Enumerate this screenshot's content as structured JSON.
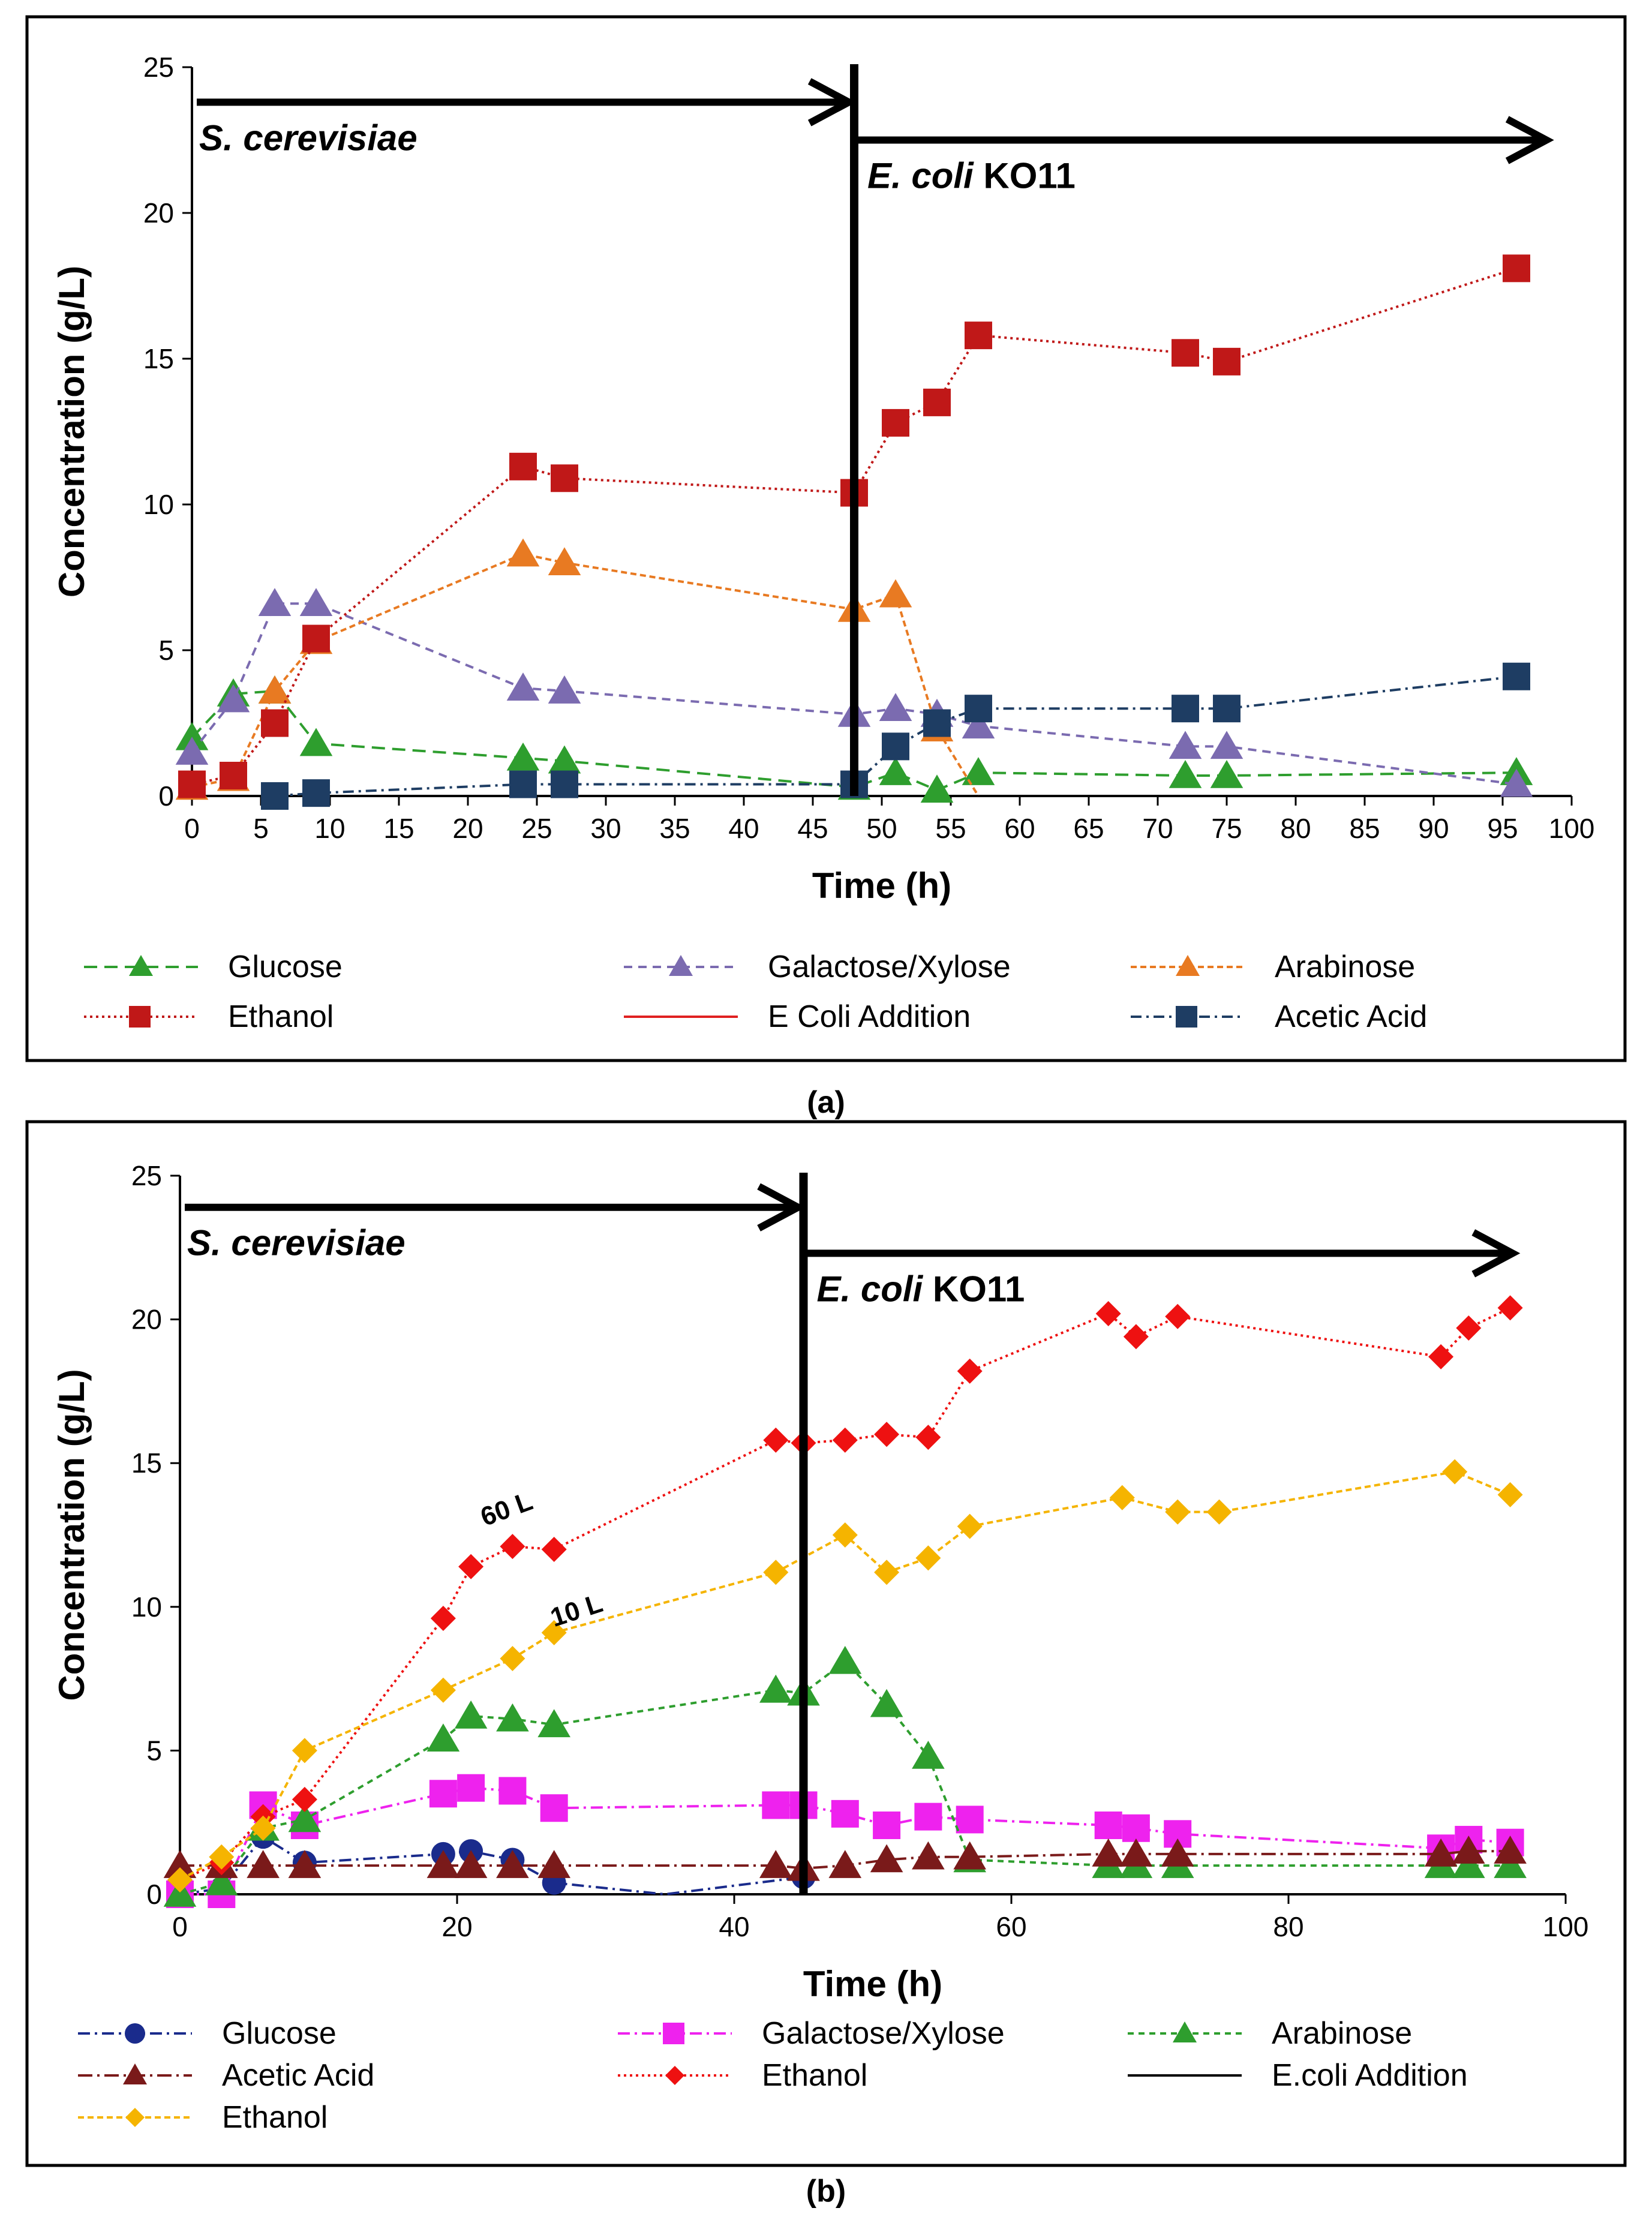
{
  "chart_data": [
    {
      "type": "line",
      "panel": "(a)",
      "xlabel": "Time (h)",
      "ylabel": "Concentration  (g/L)",
      "xlim": [
        0,
        100
      ],
      "ylim": [
        0,
        25
      ],
      "xticks": [
        0,
        5,
        10,
        15,
        20,
        25,
        30,
        35,
        40,
        45,
        50,
        55,
        60,
        65,
        70,
        75,
        80,
        85,
        90,
        95,
        100
      ],
      "yticks": [
        0,
        5,
        10,
        15,
        20,
        25
      ],
      "addition_time": 48,
      "phase_labels": {
        "first": {
          "text": "S. cerevisiae",
          "x_start": 0,
          "x_end": 47,
          "y": 23.8
        },
        "second": {
          "text_italic": "E. coli",
          "text_plain": " KO11",
          "x_start": 48,
          "x_end": 98,
          "y": 22.5
        }
      },
      "series": [
        {
          "name": "Glucose",
          "color": "#2e9e2e",
          "marker": "triangle",
          "dash": "22,12",
          "x": [
            0,
            3,
            6,
            9,
            24,
            27,
            48,
            51,
            54,
            57,
            72,
            75,
            96
          ],
          "y": [
            2.0,
            3.5,
            3.6,
            1.8,
            1.3,
            1.2,
            0.3,
            0.8,
            0.2,
            0.8,
            0.7,
            0.7,
            0.8
          ]
        },
        {
          "name": "Galactose/Xylose",
          "color": "#7b6bb0",
          "marker": "triangle",
          "dash": "14,10",
          "x": [
            0,
            3,
            6,
            9,
            24,
            27,
            48,
            51,
            54,
            57,
            72,
            75,
            96
          ],
          "y": [
            1.5,
            3.3,
            6.6,
            6.6,
            3.7,
            3.6,
            2.8,
            3.0,
            2.8,
            2.4,
            1.7,
            1.7,
            0.4
          ]
        },
        {
          "name": "Arabinose",
          "color": "#e87a22",
          "marker": "triangle",
          "dash": "10,6",
          "x": [
            0,
            3,
            6,
            9,
            24,
            27,
            48,
            51,
            54,
            57
          ],
          "y": [
            0.3,
            0.6,
            3.6,
            5.3,
            8.3,
            8.0,
            6.4,
            6.9,
            2.3,
            0
          ]
        },
        {
          "name": "Ethanol",
          "color": "#c01818",
          "marker": "square",
          "dash": "4,6",
          "x": [
            0,
            3,
            6,
            9,
            24,
            27,
            48,
            51,
            54,
            57,
            72,
            75,
            96
          ],
          "y": [
            0.4,
            0.7,
            2.5,
            5.4,
            11.3,
            10.9,
            10.4,
            12.8,
            13.5,
            15.8,
            15.2,
            14.9,
            18.1
          ]
        },
        {
          "name": "E Coli Addition",
          "color": "#e02020",
          "marker": "none",
          "dash": "",
          "legend_only": true,
          "x": [],
          "y": []
        },
        {
          "name": "Acetic Acid",
          "color": "#1e3d63",
          "marker": "square",
          "dash": "18,8,4,8",
          "x": [
            6,
            9,
            24,
            27,
            48,
            51,
            54,
            57,
            72,
            75,
            96
          ],
          "y": [
            0.0,
            0.1,
            0.4,
            0.4,
            0.4,
            1.7,
            2.5,
            3.0,
            3.0,
            3.0,
            4.1
          ]
        }
      ],
      "annotations": []
    },
    {
      "type": "line",
      "panel": "(b)",
      "xlabel": "Time (h)",
      "ylabel": "Concentration  (g/L)",
      "xlim": [
        0,
        100
      ],
      "ylim": [
        0,
        25
      ],
      "xticks": [
        0,
        20,
        40,
        60,
        80,
        100
      ],
      "yticks": [
        0,
        5,
        10,
        15,
        20,
        25
      ],
      "addition_time": 45,
      "phase_labels": {
        "first": {
          "text": "S. cerevisiae",
          "x_start": 0,
          "x_end": 44,
          "y": 23.9
        },
        "second": {
          "text_italic": "E. coli",
          "text_plain": " KO11",
          "x_start": 45,
          "x_end": 96,
          "y": 22.3
        }
      },
      "series": [
        {
          "name": "Glucose",
          "color": "#1a2b8c",
          "marker": "circle",
          "dash": "20,8,4,8",
          "x": [
            0,
            3,
            6,
            9,
            19,
            21,
            24,
            27,
            35,
            45
          ],
          "y": [
            0,
            0.2,
            2.0,
            1.1,
            1.4,
            1.5,
            1.2,
            0.4,
            0,
            0.6
          ]
        },
        {
          "name": "Galactose/Xylose",
          "color": "#ee22ee",
          "marker": "square",
          "dash": "20,8,4,8",
          "x": [
            0,
            3,
            6,
            9,
            19,
            21,
            24,
            27,
            43,
            45,
            48,
            51,
            54,
            57,
            67,
            69,
            72,
            91,
            93,
            96
          ],
          "y": [
            0,
            0,
            3.1,
            2.4,
            3.5,
            3.7,
            3.6,
            3.0,
            3.1,
            3.1,
            2.8,
            2.4,
            2.7,
            2.6,
            2.4,
            2.3,
            2.1,
            1.6,
            1.9,
            1.8
          ]
        },
        {
          "name": "Arabinose",
          "color": "#2e9e2e",
          "marker": "triangle",
          "dash": "10,8",
          "x": [
            0,
            3,
            6,
            9,
            19,
            21,
            24,
            27,
            43,
            45,
            48,
            51,
            54,
            57,
            67,
            69,
            72,
            91,
            93,
            96
          ],
          "y": [
            0,
            0.4,
            2.3,
            2.6,
            5.4,
            6.2,
            6.1,
            5.9,
            7.1,
            7.0,
            8.1,
            6.6,
            4.8,
            1.2,
            1.0,
            1.0,
            1.0,
            1.0,
            1.0,
            1.0
          ]
        },
        {
          "name": "Acetic Acid",
          "color": "#7a1a1a",
          "marker": "triangle",
          "dash": "24,8,4,8",
          "x": [
            0,
            3,
            6,
            9,
            19,
            21,
            24,
            27,
            43,
            45,
            48,
            51,
            54,
            57,
            67,
            69,
            72,
            91,
            93,
            96
          ],
          "y": [
            1.0,
            1.0,
            1.0,
            1.0,
            1.0,
            1.0,
            1.0,
            1.0,
            1.0,
            0.9,
            1.0,
            1.2,
            1.3,
            1.3,
            1.4,
            1.4,
            1.4,
            1.4,
            1.5,
            1.5
          ]
        },
        {
          "name": "Ethanol",
          "color": "#ee1111",
          "marker": "diamond",
          "dash": "4,6",
          "x": [
            0,
            3,
            6,
            9,
            19,
            21,
            24,
            27,
            43,
            45,
            48,
            51,
            54,
            57,
            67,
            69,
            72,
            91,
            93,
            96
          ],
          "y": [
            0.5,
            1.1,
            2.7,
            3.3,
            9.6,
            11.4,
            12.1,
            12.0,
            15.8,
            15.7,
            15.8,
            16.0,
            15.9,
            18.2,
            20.2,
            19.4,
            20.1,
            18.7,
            19.7,
            20.4
          ]
        },
        {
          "name": "E.coli Addition",
          "color": "#000000",
          "marker": "none",
          "dash": "",
          "legend_only": true,
          "x": [],
          "y": []
        },
        {
          "name": "Ethanol",
          "color": "#f5b400",
          "marker": "diamond",
          "dash": "10,6",
          "x": [
            0,
            3,
            6,
            9,
            19,
            24,
            27,
            43,
            48,
            51,
            54,
            57,
            68,
            72,
            75,
            92,
            96
          ],
          "y": [
            0.5,
            1.3,
            2.3,
            5.0,
            7.1,
            8.2,
            9.1,
            11.2,
            12.5,
            11.2,
            11.7,
            12.8,
            13.8,
            13.3,
            13.3,
            14.7,
            13.9
          ]
        }
      ],
      "annotations": [
        {
          "text": "60 L",
          "x": 22,
          "y": 12.8,
          "angle": -20
        },
        {
          "text": "10 L",
          "x": 27,
          "y": 9.3,
          "angle": -18
        }
      ]
    }
  ],
  "captions": [
    "(a)",
    "(b)"
  ]
}
